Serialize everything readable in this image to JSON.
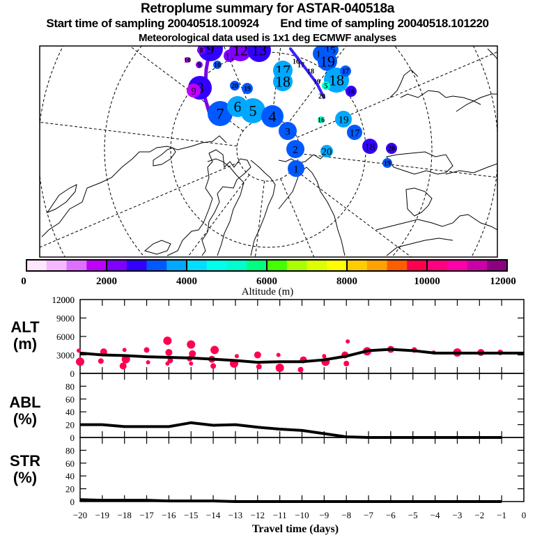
{
  "header": {
    "title": "Retroplume summary for ASTAR-040518a",
    "sampling_line": "Start time of sampling 20040518.100924     End time of sampling 20040518.101220",
    "start_time_label": "Start time of sampling",
    "start_time": "20040518.100924",
    "end_time_label": "End time of sampling",
    "end_time": "20040518.101220",
    "met_data": "Meteorological data used is 1x1 deg ECMWF analyses"
  },
  "map": {
    "description": "Polar stereographic map of the Arctic with retroplume cluster centroids labelled by travel day, colored by altitude",
    "graticule": "dashed",
    "trajectory_color": "#7A00E6",
    "clusters": [
      {
        "label": "9",
        "day": 9,
        "color": "#3300FF",
        "size": "large"
      },
      {
        "label": "8",
        "day": 8,
        "color": "#8000FF",
        "size": "small"
      },
      {
        "label": "11",
        "day": 11,
        "color": "#8000FF",
        "size": "medium"
      },
      {
        "label": "12",
        "day": 12,
        "color": "#8000FF",
        "size": "large"
      },
      {
        "label": "13",
        "day": 13,
        "color": "#3300FF",
        "size": "large"
      },
      {
        "label": "10",
        "day": 10,
        "color": "#C000FF",
        "size": "small"
      },
      {
        "label": "9",
        "day": 9,
        "color": "#8000FF",
        "size": "small"
      },
      {
        "label": "10",
        "day": 10,
        "color": "#0059FF",
        "size": "small"
      },
      {
        "label": "8",
        "day": 8,
        "color": "#3300FF",
        "size": "large"
      },
      {
        "label": "9",
        "day": 9,
        "color": "#C000FF",
        "size": "medium"
      },
      {
        "label": "20",
        "day": 20,
        "color": "#0059FF",
        "size": "small"
      },
      {
        "label": "19",
        "day": 19,
        "color": "#0059FF",
        "size": "small"
      },
      {
        "label": "7",
        "day": 7,
        "color": "#0059FF",
        "size": "large"
      },
      {
        "label": "6",
        "day": 6,
        "color": "#00A8FF",
        "size": "large"
      },
      {
        "label": "5",
        "day": 5,
        "color": "#00A8FF",
        "size": "large"
      },
      {
        "label": "4",
        "day": 4,
        "color": "#0059FF",
        "size": "large"
      },
      {
        "label": "3",
        "day": 3,
        "color": "#0059FF",
        "size": "medium"
      },
      {
        "label": "2",
        "day": 2,
        "color": "#0059FF",
        "size": "medium"
      },
      {
        "label": "1",
        "day": 1,
        "color": "#0059FF",
        "size": "medium"
      },
      {
        "label": "17",
        "day": 17,
        "color": "#00A8FF",
        "size": "medium"
      },
      {
        "label": "18",
        "day": 18,
        "color": "#00A8FF",
        "size": "medium"
      },
      {
        "label": "16",
        "day": 16,
        "color": "#3300FF",
        "size": "small"
      },
      {
        "label": "17",
        "day": 17,
        "color": "#3300FF",
        "size": "small"
      },
      {
        "label": "18",
        "day": 18,
        "color": "#3300FF",
        "size": "small"
      },
      {
        "label": "14",
        "day": 14,
        "color": "#0059FF",
        "size": "medium"
      },
      {
        "label": "15",
        "day": 15,
        "color": "#0059FF",
        "size": "medium"
      },
      {
        "label": "19",
        "day": 19,
        "color": "#0059FF",
        "size": "large"
      },
      {
        "label": "18",
        "day": 18,
        "color": "#00A8FF",
        "size": "large"
      },
      {
        "label": "17",
        "day": 17,
        "color": "#0059FF",
        "size": "small"
      },
      {
        "label": "16",
        "day": 16,
        "color": "#3300FF",
        "size": "small"
      },
      {
        "label": "5",
        "day": 5,
        "color": "#00FFCC",
        "size": "small"
      },
      {
        "label": "19",
        "day": 19,
        "color": "#00A8FF",
        "size": "small"
      },
      {
        "label": "20",
        "day": 20,
        "color": "#000000",
        "size": "none"
      },
      {
        "label": "16",
        "day": 16,
        "color": "#00FFCC",
        "size": "small"
      },
      {
        "label": "19",
        "day": 19,
        "color": "#00A8FF",
        "size": "medium"
      },
      {
        "label": "17",
        "day": 17,
        "color": "#0059FF",
        "size": "medium"
      },
      {
        "label": "20",
        "day": 20,
        "color": "#00A8FF",
        "size": "small"
      },
      {
        "label": "18",
        "day": 18,
        "color": "#3300FF",
        "size": "medium"
      },
      {
        "label": "20",
        "day": 20,
        "color": "#3300FF",
        "size": "small"
      },
      {
        "label": "19",
        "day": 19,
        "color": "#0059FF",
        "size": "small"
      }
    ]
  },
  "colorbar": {
    "colors": [
      "#FFE6FF",
      "#F5B8FF",
      "#DF70FF",
      "#C000FF",
      "#8000FF",
      "#3300FF",
      "#0059FF",
      "#00A8FF",
      "#00DDFF",
      "#00FFEE",
      "#00FFCC",
      "#00FF80",
      "#44FF00",
      "#AAFF00",
      "#DDFF00",
      "#FFFF00",
      "#FFCC00",
      "#FFA200",
      "#FF5E00",
      "#FF0050",
      "#FF0080",
      "#FF00A8",
      "#CC00A8",
      "#8C0080"
    ],
    "tick_labels": [
      "0",
      "2000",
      "4000",
      "6000",
      "8000",
      "10000",
      "12000"
    ],
    "min": 0,
    "max": 12000,
    "label": "Altitude (m)"
  },
  "chart_data": [
    {
      "type": "line",
      "panel": "ALT",
      "ylabel": "ALT\n(m)",
      "ylabel_line1": "ALT",
      "ylabel_line2": "(m)",
      "ylim": [
        0,
        12000
      ],
      "yticks": [
        0,
        3000,
        6000,
        9000,
        12000
      ],
      "ytick_labels": [
        "0",
        "3000",
        "6000",
        "9000",
        "12000"
      ],
      "xlim": [
        -20,
        0
      ],
      "x": [
        -20,
        -19,
        -18,
        -17,
        -16,
        -15,
        -14,
        -13,
        -12,
        -11,
        -10,
        -9,
        -8,
        -7,
        -6,
        -5,
        -4,
        -3,
        -2,
        -1,
        0
      ],
      "series": [
        {
          "name": "mean altitude",
          "color": "#000000",
          "values": [
            3300,
            3000,
            2900,
            2700,
            2600,
            2500,
            2300,
            2100,
            1800,
            1900,
            1900,
            2200,
            2800,
            3700,
            3900,
            3700,
            3300,
            3300,
            3300,
            3300,
            3300
          ]
        }
      ],
      "cluster_points": {
        "color": "#FF0050",
        "points": [
          {
            "x": -20,
            "y": 3700
          },
          {
            "x": -20,
            "y": 1900
          },
          {
            "x": -19,
            "y": 3500
          },
          {
            "x": -19,
            "y": 2000
          },
          {
            "x": -18,
            "y": 3800
          },
          {
            "x": -18,
            "y": 2300
          },
          {
            "x": -18,
            "y": 1200
          },
          {
            "x": -17,
            "y": 3800
          },
          {
            "x": -17,
            "y": 1800
          },
          {
            "x": -16,
            "y": 5300
          },
          {
            "x": -16,
            "y": 3400
          },
          {
            "x": -16,
            "y": 2100
          },
          {
            "x": -16,
            "y": 1600
          },
          {
            "x": -15,
            "y": 4700
          },
          {
            "x": -15,
            "y": 3200
          },
          {
            "x": -15,
            "y": 2400
          },
          {
            "x": -15,
            "y": 1600
          },
          {
            "x": -14,
            "y": 3800
          },
          {
            "x": -14,
            "y": 2300
          },
          {
            "x": -14,
            "y": 1200
          },
          {
            "x": -13,
            "y": 2800
          },
          {
            "x": -13,
            "y": 1600
          },
          {
            "x": -12,
            "y": 3000
          },
          {
            "x": -12,
            "y": 1100
          },
          {
            "x": -11,
            "y": 3000
          },
          {
            "x": -11,
            "y": 900
          },
          {
            "x": -10,
            "y": 2200
          },
          {
            "x": -10,
            "y": 600
          },
          {
            "x": -9,
            "y": 2800
          },
          {
            "x": -9,
            "y": 1900
          },
          {
            "x": -8,
            "y": 3000
          },
          {
            "x": -8,
            "y": 1600
          },
          {
            "x": -8,
            "y": 5200
          },
          {
            "x": -7,
            "y": 3600
          },
          {
            "x": -6,
            "y": 3900
          },
          {
            "x": -5,
            "y": 3800
          },
          {
            "x": -4,
            "y": 3400
          },
          {
            "x": -3,
            "y": 3400
          },
          {
            "x": -2,
            "y": 3400
          },
          {
            "x": -1,
            "y": 3400
          }
        ]
      }
    },
    {
      "type": "line",
      "panel": "ABL",
      "ylabel_line1": "ABL",
      "ylabel_line2": "(%)",
      "ylim": [
        0,
        100
      ],
      "yticks": [
        0,
        20,
        40,
        60,
        80
      ],
      "ytick_labels": [
        "0",
        "20",
        "40",
        "60",
        "80"
      ],
      "xlim": [
        -20,
        0
      ],
      "x": [
        -20,
        -19,
        -18,
        -17,
        -16,
        -15,
        -14,
        -13,
        -12,
        -11,
        -10,
        -9,
        -8,
        -7,
        -6,
        -5,
        -4,
        -3,
        -2,
        -1
      ],
      "series": [
        {
          "name": "ABL fraction",
          "color": "#000000",
          "values": [
            20,
            20,
            17,
            17,
            17,
            23,
            19,
            20,
            16,
            13,
            11,
            6,
            1,
            0,
            0,
            0,
            0,
            0,
            0,
            0
          ]
        }
      ]
    },
    {
      "type": "line",
      "panel": "STR",
      "ylabel_line1": "STR",
      "ylabel_line2": "(%)",
      "ylim": [
        0,
        100
      ],
      "yticks": [
        0,
        20,
        40,
        60,
        80
      ],
      "ytick_labels": [
        "0",
        "20",
        "40",
        "60",
        "80"
      ],
      "xlim": [
        -20,
        0
      ],
      "x": [
        -20,
        -19,
        -18,
        -17,
        -16,
        -15,
        -14,
        -13,
        -12,
        -11,
        -10,
        -9,
        -8,
        -7,
        -6,
        -5,
        -4,
        -3,
        -2,
        -1
      ],
      "xlabel": "Travel time (days)",
      "xtick_labels": [
        "−20",
        "−19",
        "−18",
        "−17",
        "−16",
        "−15",
        "−14",
        "−13",
        "−12",
        "−11",
        "−10",
        "−9",
        "−8",
        "−7",
        "−6",
        "−5",
        "−4",
        "−3",
        "−2",
        "−1",
        "0"
      ],
      "series": [
        {
          "name": "stratospheric fraction",
          "color": "#000000",
          "values": [
            3,
            2,
            2,
            2,
            1,
            1,
            1,
            0,
            0,
            0,
            0,
            0,
            0,
            0,
            0,
            0,
            0,
            0,
            0,
            0
          ]
        }
      ]
    }
  ]
}
